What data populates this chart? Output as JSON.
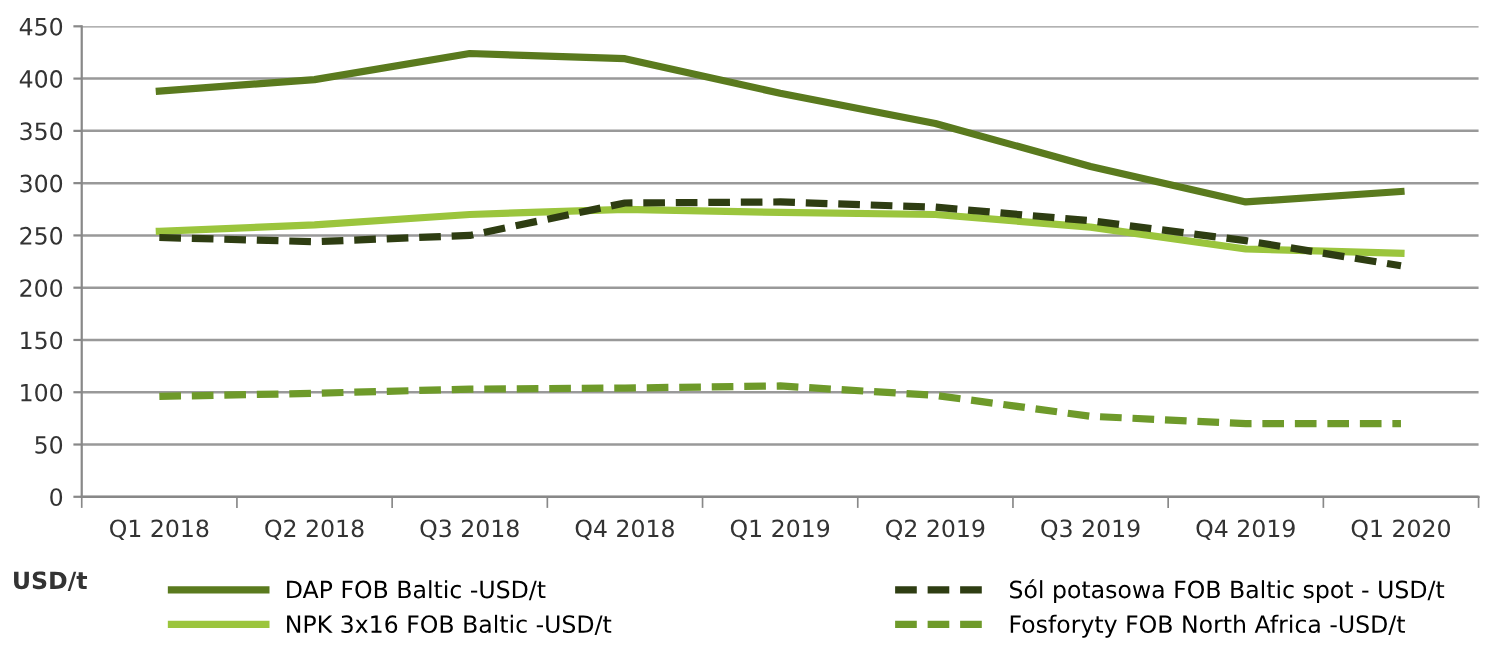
{
  "chart_data": {
    "type": "line",
    "ylabel": "USD/t",
    "categories": [
      "Q1 2018",
      "Q2 2018",
      "Q3 2018",
      "Q4 2018",
      "Q1 2019",
      "Q2 2019",
      "Q3 2019",
      "Q4 2019",
      "Q1 2020"
    ],
    "series": [
      {
        "name": "DAP FOB Baltic -USD/t",
        "color": "#5a7a1e",
        "line_style": "solid",
        "values": [
          388,
          399,
          424,
          419,
          386,
          357,
          316,
          282,
          292
        ]
      },
      {
        "name": "NPK 3x16 FOB Baltic -USD/t",
        "color": "#9bc53d",
        "line_style": "solid",
        "values": [
          254,
          260,
          270,
          275,
          272,
          270,
          258,
          237,
          233
        ]
      },
      {
        "name": "Sól potasowa FOB Baltic spot - USD/t",
        "color": "#2e3d12",
        "line_style": "dashed",
        "values": [
          248,
          244,
          250,
          281,
          282,
          277,
          264,
          245,
          221
        ]
      },
      {
        "name": "Fosforyty FOB North Africa -USD/t",
        "color": "#6e9a2a",
        "line_style": "dashed",
        "values": [
          96,
          99,
          103,
          104,
          106,
          97,
          77,
          70,
          70
        ]
      }
    ],
    "ylim": [
      0,
      450
    ],
    "yticks": [
      0,
      50,
      100,
      150,
      200,
      250,
      300,
      350,
      400,
      450
    ],
    "grid": "y",
    "legend": "bottom",
    "marker": "none"
  }
}
